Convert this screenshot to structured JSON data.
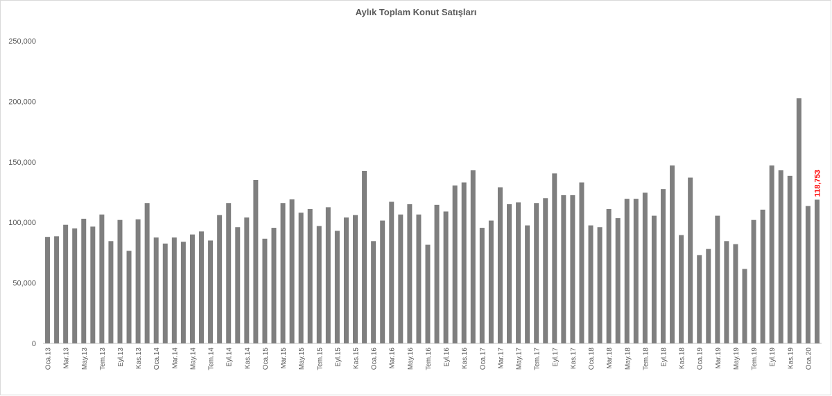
{
  "chart_data": {
    "type": "bar",
    "title": "Aylık Toplam Konut Satışları",
    "categories": [
      "Oca.13",
      null,
      "Mar.13",
      null,
      "May.13",
      null,
      "Tem.13",
      null,
      "Eyl.13",
      null,
      "Kas.13",
      null,
      "Oca.14",
      null,
      "Mar.14",
      null,
      "May.14",
      null,
      "Tem.14",
      null,
      "Eyl.14",
      null,
      "Kas.14",
      null,
      "Oca.15",
      null,
      "Mar.15",
      null,
      "May.15",
      null,
      "Tem.15",
      null,
      "Eyl.15",
      null,
      "Kas.15",
      null,
      "Oca.16",
      null,
      "Mar.16",
      null,
      "May.16",
      null,
      "Tem.16",
      null,
      "Eyl.16",
      null,
      "Kas.16",
      null,
      "Oca.17",
      null,
      "Mar.17",
      null,
      "May.17",
      null,
      "Tem.17",
      null,
      "Eyl.17",
      null,
      "Kas.17",
      null,
      "Oca.18",
      null,
      "Mar.18",
      null,
      "May.18",
      null,
      "Tem.18",
      null,
      "Eyl.18",
      null,
      "Kas.18",
      null,
      "Oca.19",
      null,
      "Mar.19",
      null,
      "May.19",
      null,
      "Tem.19",
      null,
      "Eyl.19",
      null,
      "Kas.19",
      null,
      "Oca.20",
      null
    ],
    "values": [
      88000,
      88500,
      98000,
      95000,
      103000,
      96500,
      106500,
      84500,
      102000,
      76500,
      102500,
      116000,
      87500,
      82500,
      87500,
      84000,
      90000,
      92500,
      85000,
      106000,
      116000,
      96000,
      104000,
      135000,
      86500,
      95500,
      116000,
      119000,
      108000,
      111000,
      97000,
      112500,
      93000,
      104000,
      106000,
      142500,
      84500,
      101500,
      117000,
      106500,
      115000,
      106500,
      81500,
      114500,
      109000,
      130500,
      133000,
      143000,
      95500,
      101500,
      129000,
      115000,
      116500,
      97500,
      116000,
      120000,
      140500,
      122500,
      122500,
      133000,
      97500,
      96000,
      111000,
      103500,
      119500,
      119500,
      124500,
      105500,
      127500,
      147000,
      89500,
      137000,
      73000,
      78000,
      105500,
      84500,
      82000,
      61500,
      102000,
      110500,
      147000,
      143000,
      138500,
      202500,
      113500,
      118753
    ],
    "value_labels": [
      null,
      null,
      null,
      null,
      null,
      null,
      null,
      null,
      null,
      null,
      null,
      null,
      null,
      null,
      null,
      null,
      null,
      null,
      null,
      null,
      null,
      null,
      null,
      null,
      null,
      null,
      null,
      null,
      null,
      null,
      null,
      null,
      null,
      null,
      null,
      null,
      null,
      null,
      null,
      null,
      null,
      null,
      null,
      null,
      null,
      null,
      null,
      null,
      null,
      null,
      null,
      null,
      null,
      null,
      null,
      null,
      null,
      null,
      null,
      null,
      null,
      null,
      null,
      null,
      null,
      null,
      null,
      null,
      null,
      null,
      null,
      null,
      null,
      null,
      null,
      null,
      null,
      null,
      null,
      null,
      null,
      null,
      null,
      null,
      null,
      "118,753"
    ],
    "value_label_color": "#ff0000",
    "color": "#7f7f7f",
    "ylim": [
      0,
      250000
    ],
    "yticks": [
      0,
      {
        "value": 50000,
        "label": "50,000"
      },
      {
        "value": 100000,
        "label": "100,000"
      },
      {
        "value": 150000,
        "label": "150,000"
      },
      {
        "value": 200000,
        "label": "200,000"
      },
      {
        "value": 250000,
        "label": "250,000"
      }
    ],
    "grid": false
  }
}
